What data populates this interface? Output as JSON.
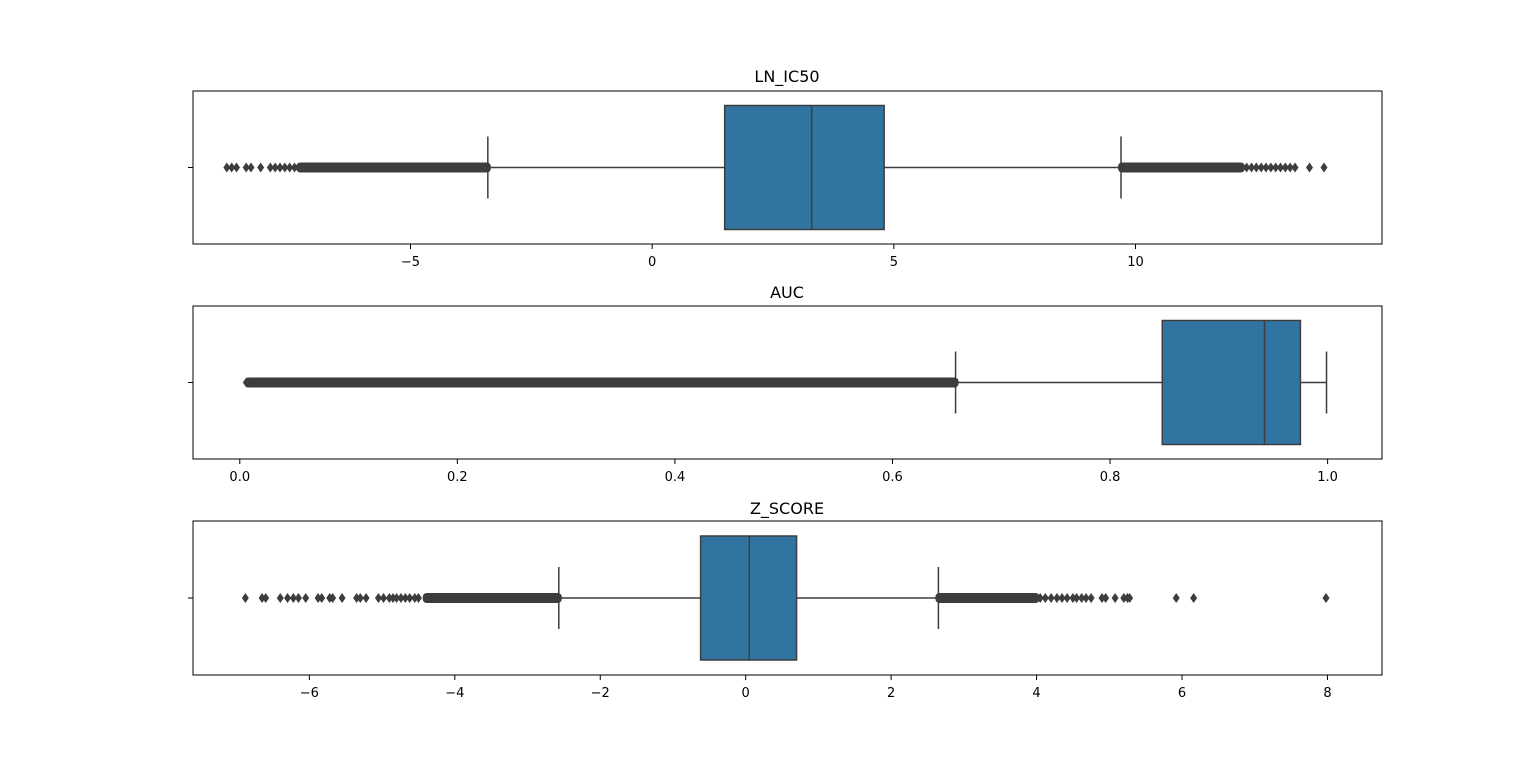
{
  "colors": {
    "box_fill": "#3274a1",
    "line": "#3d3d3d",
    "axes": "#000000",
    "background": "#ffffff"
  },
  "chart_data": [
    {
      "type": "box",
      "orientation": "horizontal",
      "title": "LN_IC50",
      "xlim": [
        -9.5,
        15.1
      ],
      "xticks": [
        -5,
        0,
        5,
        10
      ],
      "xtick_labels": [
        "−5",
        "0",
        "5",
        "10"
      ],
      "y_ticks": [
        ""
      ],
      "box": {
        "whisker_low": -3.4,
        "q1": 1.5,
        "median": 3.3,
        "q3": 4.8,
        "whisker_high": 9.7
      },
      "outliers_low": {
        "dense_range": [
          -7.3,
          -3.4
        ],
        "points": [
          -8.8,
          -8.7,
          -8.6,
          -8.4,
          -8.3,
          -8.1,
          -7.9,
          -7.8,
          -7.7,
          -7.6,
          -7.5,
          -7.4
        ]
      },
      "outliers_high": {
        "dense_range": [
          9.7,
          12.2
        ],
        "points": [
          12.3,
          12.4,
          12.5,
          12.6,
          12.7,
          12.8,
          12.9,
          13.0,
          13.1,
          13.2,
          13.3,
          13.6,
          13.9
        ]
      }
    },
    {
      "type": "box",
      "orientation": "horizontal",
      "title": "AUC",
      "xlim": [
        -0.043,
        1.05
      ],
      "xticks": [
        0.0,
        0.2,
        0.4,
        0.6,
        0.8,
        1.0
      ],
      "xtick_labels": [
        "0.0",
        "0.2",
        "0.4",
        "0.6",
        "0.8",
        "1.0"
      ],
      "y_ticks": [
        ""
      ],
      "box": {
        "whisker_low": 0.658,
        "q1": 0.848,
        "median": 0.942,
        "q3": 0.975,
        "whisker_high": 0.999
      },
      "outliers_low": {
        "dense_range": [
          0.007,
          0.658
        ],
        "points": [
          0.006,
          0.008,
          0.011,
          0.014
        ]
      },
      "outliers_high": {
        "dense_range": null,
        "points": []
      }
    },
    {
      "type": "box",
      "orientation": "horizontal",
      "title": "Z_SCORE",
      "xlim": [
        -7.6,
        8.75
      ],
      "xticks": [
        -6,
        -4,
        -2,
        0,
        2,
        4,
        6,
        8
      ],
      "xtick_labels": [
        "−6",
        "−4",
        "−2",
        "0",
        "2",
        "4",
        "6",
        "8"
      ],
      "y_ticks": [
        ""
      ],
      "box": {
        "whisker_low": -2.57,
        "q1": -0.62,
        "median": 0.05,
        "q3": 0.7,
        "whisker_high": 2.65
      },
      "outliers_low": {
        "dense_range": [
          -4.4,
          -2.57
        ],
        "points": [
          -6.88,
          -6.65,
          -6.6,
          -6.4,
          -6.3,
          -6.22,
          -6.15,
          -6.05,
          -5.88,
          -5.83,
          -5.72,
          -5.68,
          -5.55,
          -5.35,
          -5.3,
          -5.22,
          -5.05,
          -4.98,
          -4.9,
          -4.85,
          -4.8,
          -4.74,
          -4.68,
          -4.62,
          -4.55,
          -4.5
        ]
      },
      "outliers_high": {
        "dense_range": [
          2.65,
          4.0
        ],
        "points": [
          4.05,
          4.12,
          4.2,
          4.28,
          4.35,
          4.42,
          4.5,
          4.55,
          4.62,
          4.68,
          4.75,
          4.9,
          4.95,
          5.08,
          5.2,
          5.25,
          5.28,
          5.92,
          6.16,
          7.98
        ]
      }
    }
  ]
}
